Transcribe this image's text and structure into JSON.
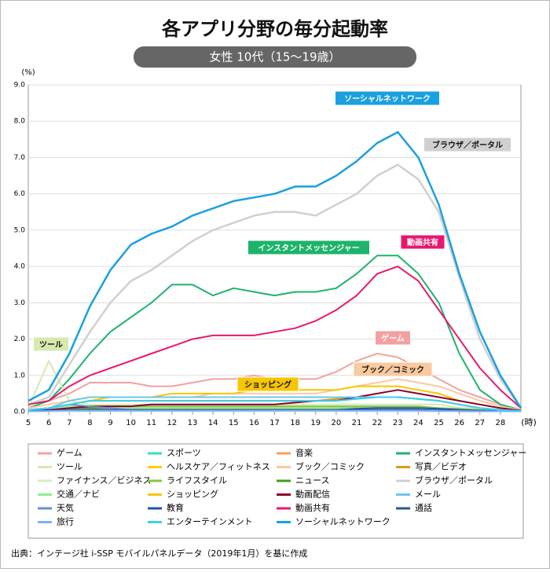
{
  "chart_data": {
    "type": "line",
    "title": "各アプリ分野の毎分起動率",
    "subtitle": "女性 10代（15～19歳）",
    "y_label": "(%)",
    "x_label": "(時)",
    "source": "出典：インテージ社 i-SSP モバイルパネルデータ（2019年1月）を基に作成",
    "xlim": [
      5,
      29
    ],
    "xticks": [
      5,
      6,
      7,
      8,
      9,
      10,
      11,
      12,
      13,
      14,
      15,
      16,
      17,
      18,
      19,
      20,
      21,
      22,
      23,
      24,
      25,
      26,
      27,
      28
    ],
    "ylim": [
      0,
      9
    ],
    "yticks": [
      {
        "value": 0,
        "label": "0.0"
      },
      {
        "value": 1,
        "label": "1.0"
      },
      {
        "value": 2,
        "label": "2.0"
      },
      {
        "value": 3,
        "label": "3.0"
      },
      {
        "value": 4,
        "label": "4.0"
      },
      {
        "value": 5,
        "label": "5.0"
      },
      {
        "value": 6,
        "label": "6.0"
      },
      {
        "value": 7,
        "label": "7.0"
      },
      {
        "value": 8,
        "label": "8.0"
      },
      {
        "value": 9,
        "label": "9.0"
      }
    ],
    "x": [
      5,
      6,
      7,
      8,
      9,
      10,
      11,
      12,
      13,
      14,
      15,
      16,
      17,
      18,
      19,
      20,
      21,
      22,
      23,
      24,
      25,
      26,
      27,
      28,
      29
    ],
    "series": [
      {
        "name": "ゲーム",
        "color": "#f4a0a0",
        "values": [
          0.1,
          0.3,
          0.5,
          0.8,
          0.8,
          0.8,
          0.7,
          0.7,
          0.8,
          0.9,
          0.9,
          1.0,
          0.9,
          0.9,
          0.9,
          1.1,
          1.4,
          1.6,
          1.5,
          1.2,
          0.9,
          0.6,
          0.4,
          0.2,
          0.05
        ]
      },
      {
        "name": "スポーツ",
        "color": "#33e0c0",
        "values": [
          0.02,
          0.03,
          0.05,
          0.08,
          0.08,
          0.08,
          0.08,
          0.1,
          0.1,
          0.1,
          0.1,
          0.1,
          0.1,
          0.1,
          0.1,
          0.1,
          0.12,
          0.12,
          0.12,
          0.1,
          0.08,
          0.05,
          0.03,
          0.02,
          0.01
        ]
      },
      {
        "name": "音楽",
        "color": "#f4a060",
        "values": [
          0.05,
          0.1,
          0.2,
          0.3,
          0.3,
          0.3,
          0.3,
          0.3,
          0.3,
          0.3,
          0.3,
          0.3,
          0.3,
          0.3,
          0.3,
          0.35,
          0.4,
          0.4,
          0.4,
          0.35,
          0.3,
          0.2,
          0.1,
          0.05,
          0.02
        ]
      },
      {
        "name": "インスタントメッセンジャー",
        "color": "#1db36b",
        "values": [
          0.1,
          0.3,
          0.9,
          1.6,
          2.2,
          2.6,
          3.0,
          3.5,
          3.5,
          3.2,
          3.4,
          3.3,
          3.2,
          3.3,
          3.3,
          3.4,
          3.8,
          4.3,
          4.3,
          3.8,
          3.0,
          1.6,
          0.6,
          0.2,
          0.05
        ]
      },
      {
        "name": "ツール",
        "color": "#d8e8b0",
        "values": [
          0.1,
          1.4,
          0.3,
          0.2,
          0.2,
          0.2,
          0.2,
          0.2,
          0.2,
          0.2,
          0.2,
          0.2,
          0.2,
          0.2,
          0.2,
          0.2,
          0.2,
          0.2,
          0.2,
          0.2,
          0.2,
          0.1,
          0.1,
          0.05,
          0.02
        ]
      },
      {
        "name": "ヘルスケア／フィットネス",
        "color": "#ffcc00",
        "values": [
          0.02,
          0.05,
          0.1,
          0.1,
          0.1,
          0.1,
          0.1,
          0.1,
          0.1,
          0.1,
          0.1,
          0.1,
          0.1,
          0.1,
          0.1,
          0.1,
          0.1,
          0.1,
          0.1,
          0.1,
          0.1,
          0.05,
          0.03,
          0.02,
          0.01
        ]
      },
      {
        "name": "ブック／コミック",
        "color": "#f9c9a0",
        "values": [
          0.1,
          0.2,
          0.3,
          0.4,
          0.4,
          0.4,
          0.4,
          0.4,
          0.4,
          0.5,
          0.5,
          0.5,
          0.5,
          0.5,
          0.5,
          0.6,
          0.7,
          0.8,
          0.9,
          0.8,
          0.7,
          0.5,
          0.3,
          0.15,
          0.05
        ]
      },
      {
        "name": "写真／ビデオ",
        "color": "#d4a017",
        "values": [
          0.05,
          0.1,
          0.2,
          0.3,
          0.3,
          0.3,
          0.3,
          0.3,
          0.3,
          0.3,
          0.3,
          0.3,
          0.3,
          0.3,
          0.3,
          0.35,
          0.4,
          0.4,
          0.4,
          0.35,
          0.3,
          0.2,
          0.1,
          0.05,
          0.02
        ]
      },
      {
        "name": "ファイナンス／ビジネス",
        "color": "#d0f0c0",
        "values": [
          0.01,
          0.02,
          0.05,
          0.05,
          0.05,
          0.05,
          0.05,
          0.05,
          0.05,
          0.05,
          0.05,
          0.05,
          0.05,
          0.05,
          0.05,
          0.05,
          0.05,
          0.05,
          0.05,
          0.05,
          0.05,
          0.03,
          0.02,
          0.01,
          0.01
        ]
      },
      {
        "name": "ライフスタイル",
        "color": "#8bc34a",
        "values": [
          0.02,
          0.05,
          0.1,
          0.15,
          0.15,
          0.15,
          0.15,
          0.15,
          0.15,
          0.15,
          0.15,
          0.15,
          0.15,
          0.15,
          0.15,
          0.15,
          0.15,
          0.15,
          0.15,
          0.15,
          0.1,
          0.08,
          0.05,
          0.02,
          0.01
        ]
      },
      {
        "name": "ニュース",
        "color": "#4a9a1a",
        "values": [
          0.02,
          0.05,
          0.1,
          0.1,
          0.1,
          0.1,
          0.1,
          0.1,
          0.1,
          0.1,
          0.1,
          0.1,
          0.1,
          0.1,
          0.1,
          0.1,
          0.1,
          0.1,
          0.1,
          0.1,
          0.08,
          0.05,
          0.03,
          0.02,
          0.01
        ]
      },
      {
        "name": "ブラウザ／ポータル",
        "color": "#d0d0d0",
        "values": [
          0.2,
          0.4,
          1.3,
          2.2,
          3.0,
          3.6,
          3.9,
          4.3,
          4.7,
          5.0,
          5.2,
          5.4,
          5.5,
          5.5,
          5.4,
          5.7,
          6.0,
          6.5,
          6.8,
          6.4,
          5.5,
          3.7,
          2.0,
          0.9,
          0.1
        ]
      },
      {
        "name": "交通／ナビ",
        "color": "#90ee90",
        "values": [
          0.02,
          0.05,
          0.15,
          0.15,
          0.1,
          0.1,
          0.1,
          0.1,
          0.1,
          0.1,
          0.1,
          0.1,
          0.1,
          0.1,
          0.1,
          0.1,
          0.1,
          0.1,
          0.1,
          0.1,
          0.08,
          0.05,
          0.03,
          0.02,
          0.01
        ]
      },
      {
        "name": "ショッピング",
        "color": "#f7c600",
        "values": [
          0.05,
          0.1,
          0.2,
          0.3,
          0.4,
          0.4,
          0.4,
          0.5,
          0.5,
          0.5,
          0.5,
          0.6,
          0.6,
          0.6,
          0.6,
          0.6,
          0.7,
          0.7,
          0.7,
          0.6,
          0.5,
          0.3,
          0.2,
          0.1,
          0.03
        ]
      },
      {
        "name": "動画配信",
        "color": "#8b0033",
        "values": [
          0.05,
          0.05,
          0.1,
          0.15,
          0.15,
          0.15,
          0.2,
          0.2,
          0.2,
          0.2,
          0.2,
          0.2,
          0.2,
          0.25,
          0.3,
          0.3,
          0.4,
          0.5,
          0.6,
          0.5,
          0.4,
          0.3,
          0.2,
          0.1,
          0.03
        ]
      },
      {
        "name": "メール",
        "color": "#6ec6f0",
        "values": [
          0.05,
          0.1,
          0.3,
          0.4,
          0.4,
          0.4,
          0.4,
          0.4,
          0.4,
          0.4,
          0.4,
          0.4,
          0.4,
          0.4,
          0.4,
          0.4,
          0.4,
          0.4,
          0.4,
          0.35,
          0.3,
          0.2,
          0.1,
          0.05,
          0.02
        ]
      },
      {
        "name": "天気",
        "color": "#6a8fd0",
        "values": [
          0.02,
          0.1,
          0.2,
          0.15,
          0.1,
          0.05,
          0.05,
          0.05,
          0.05,
          0.05,
          0.05,
          0.05,
          0.05,
          0.05,
          0.05,
          0.05,
          0.05,
          0.05,
          0.05,
          0.05,
          0.03,
          0.02,
          0.01,
          0.01,
          0.01
        ]
      },
      {
        "name": "教育",
        "color": "#2050b0",
        "values": [
          0.02,
          0.03,
          0.05,
          0.05,
          0.05,
          0.05,
          0.05,
          0.05,
          0.05,
          0.05,
          0.05,
          0.05,
          0.05,
          0.05,
          0.05,
          0.05,
          0.08,
          0.1,
          0.1,
          0.1,
          0.08,
          0.05,
          0.03,
          0.02,
          0.01
        ]
      },
      {
        "name": "動画共有",
        "color": "#e8186e",
        "values": [
          0.2,
          0.3,
          0.7,
          1.0,
          1.2,
          1.4,
          1.6,
          1.8,
          2.0,
          2.1,
          2.1,
          2.1,
          2.2,
          2.3,
          2.5,
          2.8,
          3.2,
          3.8,
          4.0,
          3.6,
          2.8,
          2.0,
          1.2,
          0.6,
          0.1
        ]
      },
      {
        "name": "通話",
        "color": "#2a5a8a",
        "values": [
          0.02,
          0.03,
          0.05,
          0.05,
          0.05,
          0.05,
          0.05,
          0.05,
          0.05,
          0.05,
          0.05,
          0.05,
          0.05,
          0.05,
          0.05,
          0.05,
          0.05,
          0.05,
          0.05,
          0.05,
          0.03,
          0.02,
          0.01,
          0.01,
          0.01
        ]
      },
      {
        "name": "旅行",
        "color": "#7ab0ff",
        "values": [
          0.01,
          0.02,
          0.03,
          0.03,
          0.03,
          0.03,
          0.03,
          0.03,
          0.03,
          0.03,
          0.03,
          0.03,
          0.03,
          0.03,
          0.03,
          0.03,
          0.03,
          0.03,
          0.03,
          0.03,
          0.02,
          0.02,
          0.01,
          0.01,
          0.01
        ]
      },
      {
        "name": "エンターテインメント",
        "color": "#3ad0f0",
        "values": [
          0.05,
          0.1,
          0.2,
          0.3,
          0.3,
          0.3,
          0.3,
          0.3,
          0.3,
          0.3,
          0.3,
          0.3,
          0.3,
          0.3,
          0.3,
          0.3,
          0.35,
          0.4,
          0.4,
          0.35,
          0.3,
          0.2,
          0.1,
          0.05,
          0.02
        ]
      },
      {
        "name": "ソーシャルネットワーク",
        "color": "#1aa0e0",
        "values": [
          0.3,
          0.6,
          1.6,
          2.9,
          3.9,
          4.6,
          4.9,
          5.1,
          5.4,
          5.6,
          5.8,
          5.9,
          6.0,
          6.2,
          6.2,
          6.5,
          6.9,
          7.4,
          7.7,
          7.0,
          5.7,
          3.8,
          2.2,
          1.0,
          0.1
        ]
      }
    ]
  }
}
